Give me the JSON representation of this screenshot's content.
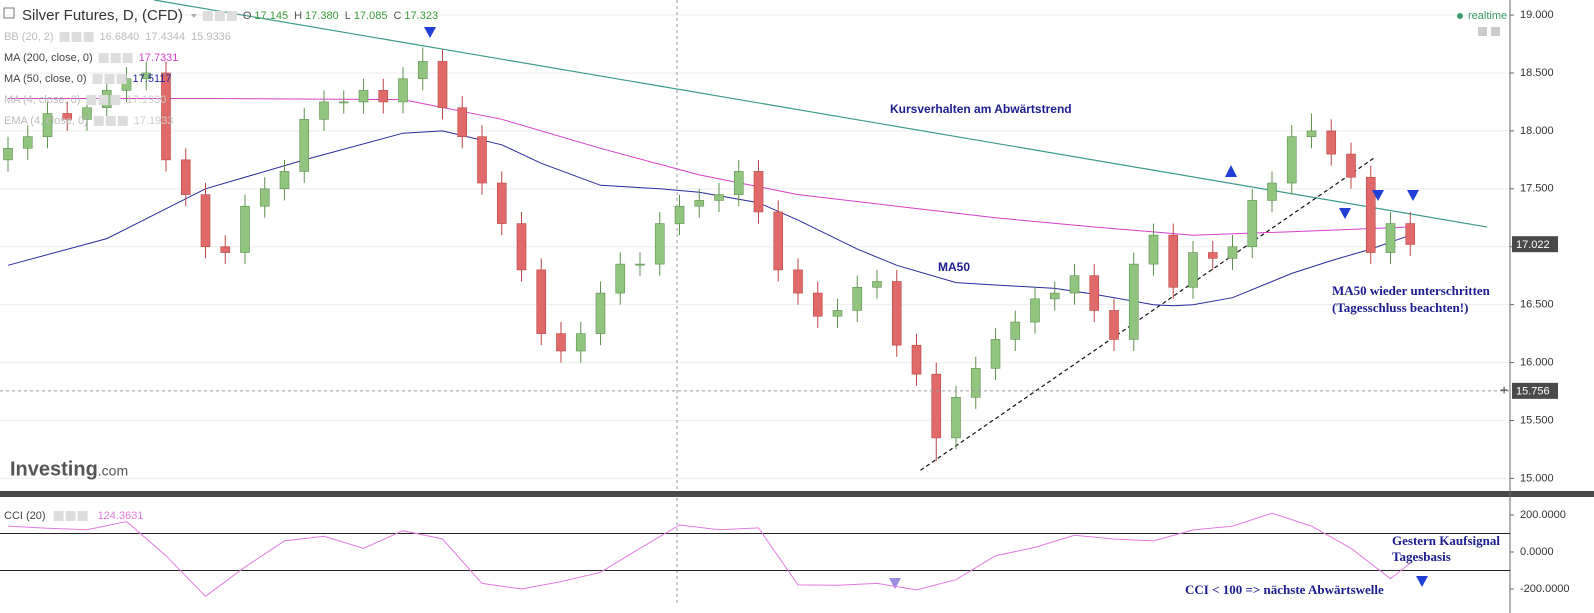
{
  "chart_data": {
    "type": "candlestick",
    "title": "Silver Futures, D, (CFD)",
    "ohlc_readout": [
      {
        "label": "O",
        "value": "17.145"
      },
      {
        "label": "H",
        "value": "17.380"
      },
      {
        "label": "L",
        "value": "17.085"
      },
      {
        "label": "C",
        "value": "17.323"
      }
    ],
    "up_color": "#90c47f",
    "down_color": "#e06a6a",
    "open": [
      17.75,
      17.85,
      17.95,
      18.15,
      18.1,
      18.2,
      18.35,
      18.45,
      18.5,
      17.75,
      17.45,
      17.0,
      16.95,
      17.35,
      17.5,
      17.65,
      18.1,
      18.25,
      18.25,
      18.35,
      18.25,
      18.45,
      18.6,
      18.2,
      17.95,
      17.55,
      17.2,
      16.8,
      16.25,
      16.1,
      16.25,
      16.6,
      16.85,
      16.85,
      17.2,
      17.35,
      17.4,
      17.45,
      17.65,
      17.3,
      16.8,
      16.6,
      16.4,
      16.45,
      16.65,
      16.7,
      16.15,
      15.9,
      15.35,
      15.7,
      15.95,
      16.2,
      16.35,
      16.55,
      16.6,
      16.75,
      16.45,
      16.2,
      16.85,
      17.1,
      16.65,
      16.95,
      16.9,
      17.0,
      17.4,
      17.55,
      17.95,
      18.0,
      17.8,
      17.6,
      16.95,
      17.2
    ],
    "high": [
      17.95,
      18.05,
      18.25,
      18.25,
      18.3,
      18.45,
      18.55,
      18.6,
      18.6,
      17.85,
      17.55,
      17.1,
      17.45,
      17.6,
      17.75,
      18.2,
      18.35,
      18.35,
      18.45,
      18.45,
      18.55,
      18.72,
      18.7,
      18.3,
      18.05,
      17.65,
      17.3,
      16.9,
      16.35,
      16.35,
      16.7,
      16.95,
      16.95,
      17.3,
      17.45,
      17.5,
      17.55,
      17.75,
      17.75,
      17.4,
      16.9,
      16.7,
      16.55,
      16.75,
      16.8,
      16.8,
      16.25,
      16.0,
      15.8,
      16.05,
      16.3,
      16.45,
      16.65,
      16.7,
      16.85,
      16.85,
      16.55,
      16.95,
      17.2,
      17.2,
      17.05,
      17.05,
      17.1,
      17.5,
      17.65,
      18.05,
      18.15,
      18.1,
      17.9,
      17.7,
      17.3,
      17.3
    ],
    "low": [
      17.65,
      17.75,
      17.85,
      18.0,
      18.0,
      18.1,
      18.25,
      18.35,
      17.65,
      17.35,
      16.9,
      16.85,
      16.85,
      17.25,
      17.4,
      17.55,
      18.0,
      18.15,
      18.15,
      18.15,
      18.15,
      18.35,
      18.1,
      17.85,
      17.45,
      17.1,
      16.7,
      16.15,
      16.0,
      16.0,
      16.15,
      16.5,
      16.75,
      16.75,
      17.1,
      17.25,
      17.3,
      17.35,
      17.2,
      16.7,
      16.5,
      16.3,
      16.3,
      16.35,
      16.55,
      16.05,
      15.8,
      15.15,
      15.25,
      15.6,
      15.85,
      16.1,
      16.25,
      16.45,
      16.5,
      16.35,
      16.1,
      16.1,
      16.75,
      16.55,
      16.55,
      16.8,
      16.8,
      16.9,
      17.3,
      17.45,
      17.85,
      17.7,
      17.5,
      16.85,
      16.85,
      16.92
    ],
    "close": [
      17.85,
      17.95,
      18.15,
      18.1,
      18.2,
      18.35,
      18.45,
      18.5,
      17.75,
      17.45,
      17.0,
      16.95,
      17.35,
      17.5,
      17.65,
      18.1,
      18.25,
      18.25,
      18.35,
      18.25,
      18.45,
      18.6,
      18.2,
      17.95,
      17.55,
      17.2,
      16.8,
      16.25,
      16.1,
      16.25,
      16.6,
      16.85,
      16.85,
      17.2,
      17.35,
      17.4,
      17.45,
      17.65,
      17.3,
      16.8,
      16.6,
      16.4,
      16.45,
      16.65,
      16.7,
      16.15,
      15.9,
      15.35,
      15.7,
      15.95,
      16.2,
      16.35,
      16.55,
      16.6,
      16.75,
      16.45,
      16.2,
      16.85,
      17.1,
      16.65,
      16.95,
      16.9,
      17.0,
      17.4,
      17.55,
      17.95,
      18.0,
      17.8,
      17.6,
      16.95,
      17.2,
      17.02
    ],
    "ylim": [
      14.9,
      19.13
    ],
    "yticks": [
      {
        "value": 15,
        "label": "15.000"
      },
      {
        "value": 15.5,
        "label": "15.500"
      },
      {
        "value": 16,
        "label": "16.000"
      },
      {
        "value": 16.5,
        "label": "16.500"
      },
      {
        "value": 17,
        "label": "17.000"
      },
      {
        "value": 17.5,
        "label": "17.500"
      },
      {
        "value": 18,
        "label": "18.000"
      },
      {
        "value": 18.5,
        "label": "18.500"
      },
      {
        "value": 19,
        "label": "19.000"
      }
    ],
    "grid": true,
    "indicators": [
      {
        "name": "BB (20, 2)",
        "readout": [
          "16.6840",
          "17.4344",
          "15.9336"
        ],
        "color": "#bbbbbb"
      },
      {
        "name": "MA (200, close, 0)",
        "readout": [
          "17.7331"
        ],
        "color": "#d63fc8",
        "x": [
          0,
          10,
          20,
          25,
          30,
          35,
          40,
          45,
          50,
          55,
          60,
          65,
          71
        ],
        "values": [
          18.28,
          18.28,
          18.27,
          18.1,
          17.85,
          17.62,
          17.45,
          17.35,
          17.25,
          17.17,
          17.1,
          17.13,
          17.17
        ]
      },
      {
        "name": "MA (50, close, 0)",
        "readout": [
          "17.5117"
        ],
        "color": "#2a2a9c",
        "x": [
          0,
          5,
          10,
          15,
          20,
          22,
          25,
          27,
          30,
          33,
          35,
          38,
          40,
          43,
          45,
          48,
          50,
          53,
          55,
          58,
          59,
          60,
          62,
          65,
          67,
          69,
          71
        ],
        "values": [
          16.84,
          17.07,
          17.5,
          17.75,
          17.98,
          18.0,
          17.88,
          17.72,
          17.53,
          17.5,
          17.47,
          17.38,
          17.23,
          16.98,
          16.84,
          16.69,
          16.67,
          16.64,
          16.59,
          16.5,
          16.49,
          16.5,
          16.56,
          16.77,
          16.88,
          16.98,
          17.1
        ]
      },
      {
        "name": "MA (4, close, 0)",
        "readout": [
          "17.1930"
        ],
        "color": "#cccccc"
      },
      {
        "name": "EMA (4, close, 0)",
        "readout": [
          "17.1933"
        ],
        "color": "#cccccc"
      }
    ],
    "trendlines": [
      {
        "x": [
          7.4,
          74.9
        ],
        "values": [
          19.13,
          17.17
        ],
        "color": "#3a9b8a",
        "dashed": false
      },
      {
        "x": [
          46.2,
          69.2
        ],
        "values": [
          15.07,
          17.77
        ],
        "color": "#111111",
        "dashed": true
      }
    ],
    "price_tags": [
      {
        "value": 17.022,
        "line": false
      },
      {
        "value": 15.756,
        "line": true
      }
    ],
    "annotations": [
      "Kursverhalten am Abwärtstrend",
      "MA50",
      "MA50 wieder unterschritten",
      "(Tagesschluss beachten!)",
      "Gestern Kaufsignal",
      "Tagesbasis",
      "CCI < 100 => nächste Abwärtswelle"
    ],
    "cci": {
      "name": "CCI (20)",
      "readout": "124.3631",
      "color": "#e27ae0",
      "x": [
        0,
        2,
        4,
        6,
        8,
        10,
        12,
        14,
        16,
        18,
        20,
        22,
        24,
        26,
        28,
        30,
        32,
        34,
        36,
        38,
        40,
        42,
        44,
        46,
        48,
        50,
        52,
        54,
        56,
        58,
        60,
        62,
        64,
        66,
        68,
        70,
        71
      ],
      "values": [
        140,
        128,
        120,
        165,
        -20,
        -240,
        -81,
        60,
        85,
        20,
        115,
        70,
        -170,
        -200,
        -160,
        -110,
        20,
        146,
        120,
        130,
        -178,
        -180,
        -170,
        -205,
        -150,
        -20,
        25,
        90,
        70,
        60,
        119,
        140,
        210,
        140,
        20,
        -145,
        -60
      ],
      "levels": [
        100,
        -100
      ],
      "ylim": [
        -276,
        292
      ],
      "yticks": [
        {
          "value": 200,
          "label": "200.0000"
        },
        {
          "value": 0,
          "label": "0.0000"
        },
        {
          "value": -200,
          "label": "-200.0000"
        }
      ]
    }
  },
  "ui": {
    "status": "realtime",
    "logo": "Investing",
    "logo_suffix": ".com"
  }
}
